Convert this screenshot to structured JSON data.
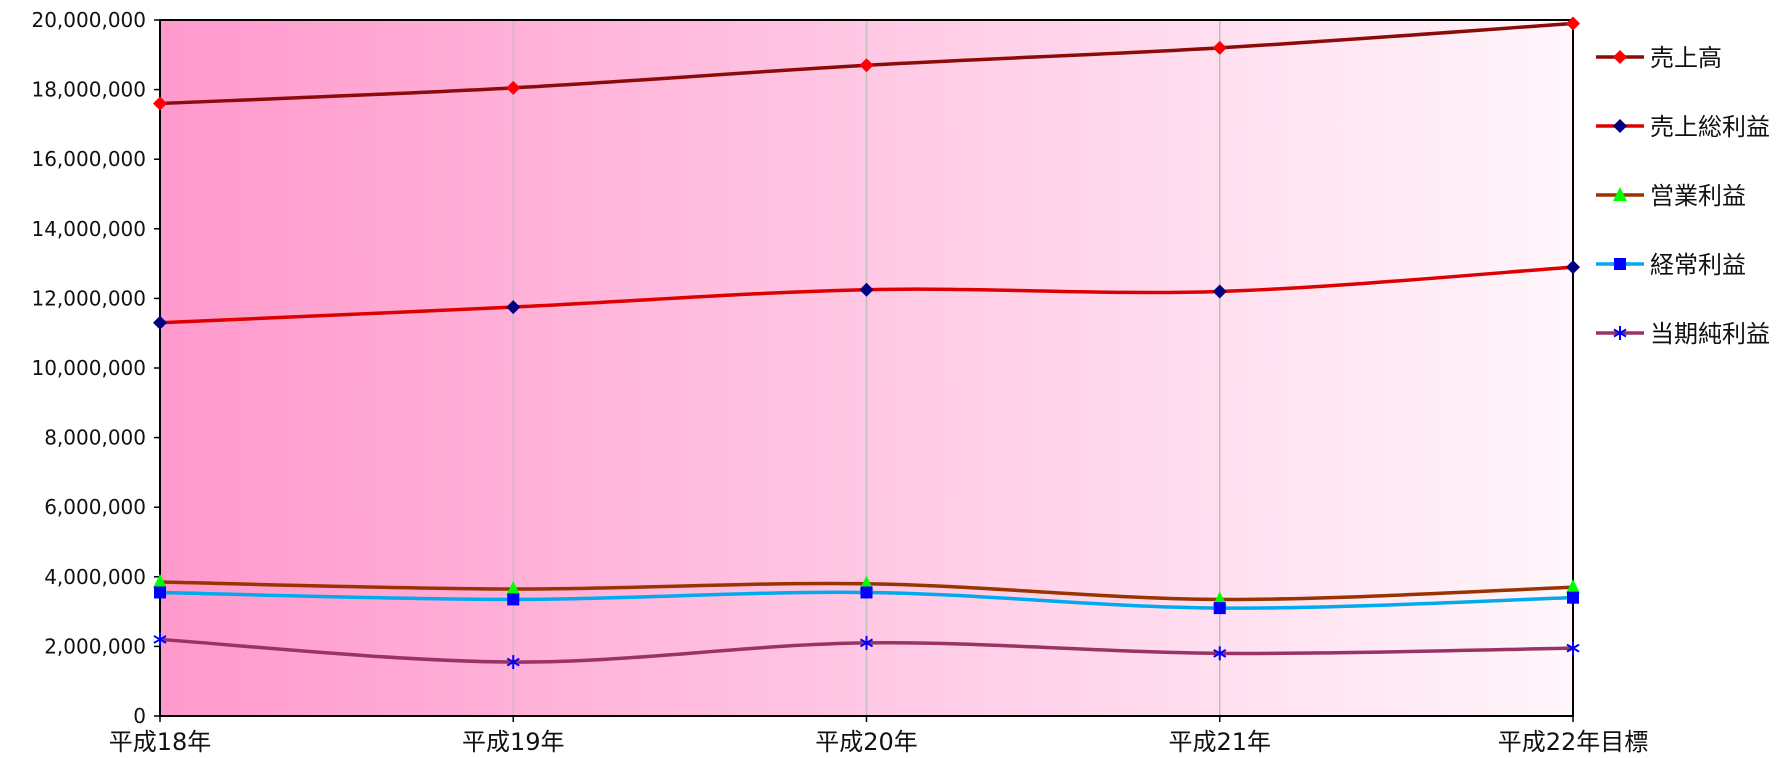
{
  "chart_data": {
    "type": "line",
    "categories": [
      "平成18年",
      "平成19年",
      "平成20年",
      "平成21年",
      "平成22年目標"
    ],
    "ylim": [
      0,
      20000000
    ],
    "yticks": [
      {
        "value": 0,
        "label": "0"
      },
      {
        "value": 2000000,
        "label": "2,000,000"
      },
      {
        "value": 4000000,
        "label": "4,000,000"
      },
      {
        "value": 6000000,
        "label": "6,000,000"
      },
      {
        "value": 8000000,
        "label": "8,000,000"
      },
      {
        "value": 10000000,
        "label": "10,000,000"
      },
      {
        "value": 12000000,
        "label": "12,000,000"
      },
      {
        "value": 14000000,
        "label": "14,000,000"
      },
      {
        "value": 16000000,
        "label": "16,000,000"
      },
      {
        "value": 18000000,
        "label": "18,000,000"
      },
      {
        "value": 20000000,
        "label": "20,000,000"
      }
    ],
    "series": [
      {
        "name": "売上高",
        "values": [
          17600000,
          18050000,
          18700000,
          19200000,
          19900000
        ],
        "line_color": "#8b0a0a",
        "marker_color": "#ff0000",
        "marker": "diamond"
      },
      {
        "name": "売上総利益",
        "values": [
          11300000,
          11750000,
          12250000,
          12200000,
          12900000
        ],
        "line_color": "#dd0000",
        "marker_color": "#000080",
        "marker": "diamond"
      },
      {
        "name": "営業利益",
        "values": [
          3850000,
          3650000,
          3800000,
          3350000,
          3700000
        ],
        "line_color": "#993300",
        "marker_color": "#00ff00",
        "marker": "triangle"
      },
      {
        "name": "経常利益",
        "values": [
          3550000,
          3350000,
          3550000,
          3100000,
          3400000
        ],
        "line_color": "#00aaee",
        "marker_color": "#0000ff",
        "marker": "square"
      },
      {
        "name": "当期純利益",
        "values": [
          2200000,
          1550000,
          2100000,
          1800000,
          1950000
        ],
        "line_color": "#993366",
        "marker_color": "#0000ff",
        "marker": "star"
      }
    ],
    "grid": {
      "vertical": true,
      "horizontal": false
    },
    "background_gradient": [
      "#ff99cc",
      "#fff6fb"
    ],
    "legend_position": "right",
    "title": "",
    "xlabel": "",
    "ylabel": ""
  }
}
